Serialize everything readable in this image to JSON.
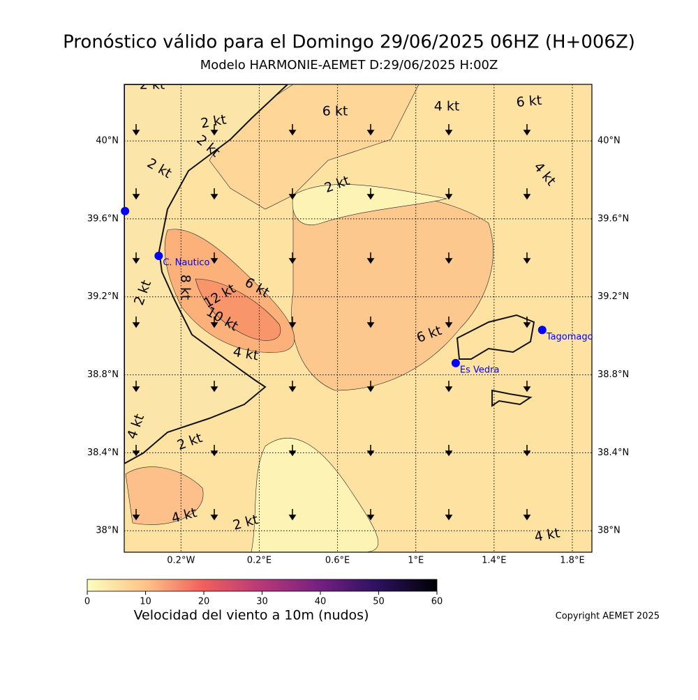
{
  "title": "Pronóstico válido para el Domingo 29/06/2025 06HZ (H+006Z)",
  "subtitle": "Modelo HARMONIE-AEMET D:29/06/2025 H:00Z",
  "map": {
    "xlim": [
      -0.49,
      1.9
    ],
    "ylim": [
      37.89,
      40.29
    ],
    "xticks": [
      {
        "value": -0.2,
        "label": "0.2°W"
      },
      {
        "value": 0.2,
        "label": "0.2°E"
      },
      {
        "value": 0.6,
        "label": "0.6°E"
      },
      {
        "value": 1,
        "label": "1°E"
      },
      {
        "value": 1.4,
        "label": "1.4°E"
      },
      {
        "value": 1.8,
        "label": "1.8°E"
      }
    ],
    "yticks": [
      {
        "value": 38,
        "label": "38°N"
      },
      {
        "value": 38.4,
        "label": "38.4°N"
      },
      {
        "value": 38.8,
        "label": "38.8°N"
      },
      {
        "value": 39.2,
        "label": "39.2°N"
      },
      {
        "value": 39.6,
        "label": "39.6°N"
      },
      {
        "value": 40,
        "label": "40°N"
      }
    ],
    "stations": [
      {
        "lon": -0.486,
        "lat": 39.64
      },
      {
        "name": "C. Nautico",
        "lon": -0.314,
        "lat": 39.41
      },
      {
        "name": "Es Vedra",
        "lon": 1.204,
        "lat": 38.86
      },
      {
        "name": "Tagomago",
        "lon": 1.646,
        "lat": 39.03
      }
    ],
    "contour_labels": [
      "2 kt",
      "2 kt",
      "2 kt",
      "2 kt",
      "6 kt",
      "4 kt",
      "6 kt",
      "4 kt",
      "2 kt",
      "8 kt",
      "12 kt",
      "6 kt",
      "10 kt",
      "2 kt",
      "4 kt",
      "6 kt",
      "4 kt",
      "2 kt",
      "4 kt",
      "2 kt",
      "4 kt"
    ]
  },
  "colorbar": {
    "range": [
      0,
      60
    ],
    "ticks": [
      0,
      10,
      20,
      30,
      40,
      50,
      60
    ],
    "label": "Velocidad del viento a 10m (nudos)"
  },
  "copyright": "Copyright AEMET 2025"
}
